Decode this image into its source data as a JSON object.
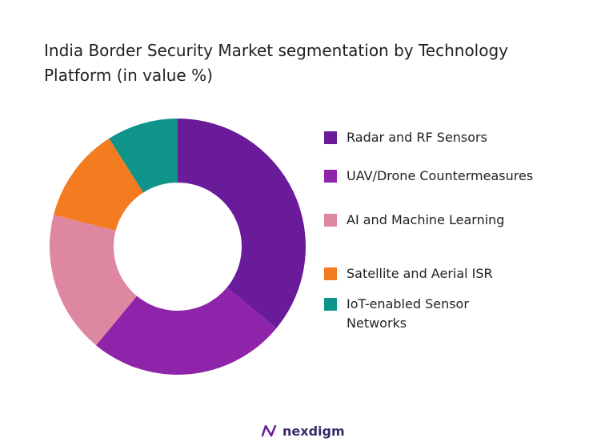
{
  "chart_data": {
    "type": "donut",
    "title": "India Border Security Market segmentation by Technology Platform (in value %)",
    "categories": [
      "Radar and RF Sensors",
      "UAV/Drone Countermeasures",
      "AI and Machine Learning",
      "Satellite and Aerial ISR",
      "IoT-enabled Sensor Networks"
    ],
    "values": [
      36,
      25,
      18,
      12,
      9
    ],
    "colors": [
      "#6a1b9a",
      "#8e24aa",
      "#de87a0",
      "#f47c20",
      "#0e9488"
    ]
  },
  "brand": "nexdigm"
}
